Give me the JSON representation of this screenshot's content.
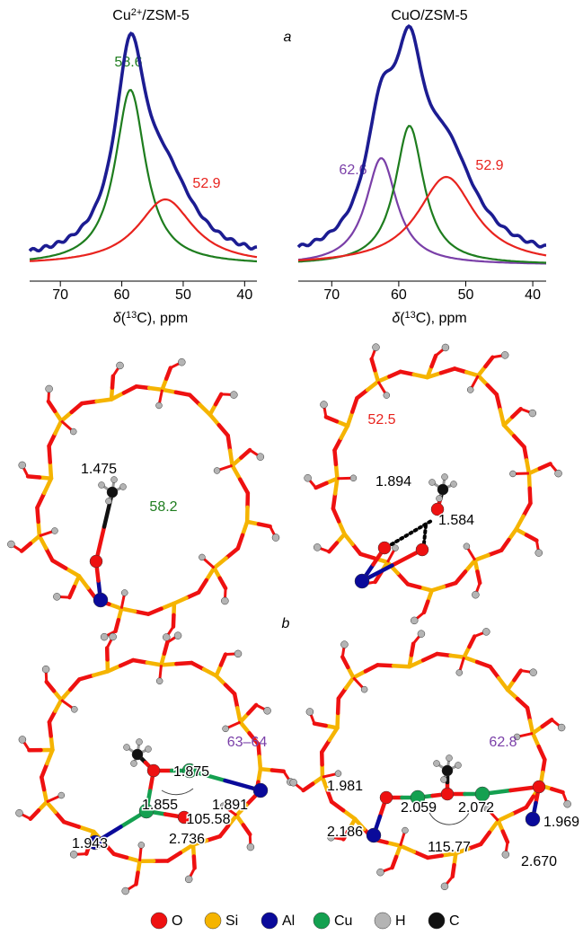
{
  "panel_a": "a",
  "panel_b": "b",
  "spectra": [
    {
      "title": [
        "Cu",
        "2+",
        "/ZSM-5"
      ],
      "xlabel": [
        "δ",
        "(",
        "13",
        "C), ppm"
      ],
      "xlim": [
        75,
        38
      ],
      "xticks": [
        70,
        60,
        50,
        40
      ],
      "sum_color": "#1c1c92",
      "peaks": [
        {
          "value": 58.6,
          "label": "58.6",
          "color": "#1e7d1e"
        },
        {
          "value": 52.9,
          "label": "52.9",
          "color": "#e8231e"
        }
      ]
    },
    {
      "title": [
        "CuO/ZSM-5"
      ],
      "xlabel": [
        "δ",
        "(",
        "13",
        "C), ppm"
      ],
      "xlim": [
        75,
        38
      ],
      "xticks": [
        70,
        60,
        50,
        40
      ],
      "sum_color": "#1c1c92",
      "peaks": [
        {
          "value": 62.6,
          "label": "62.6",
          "color": "#7a3fa8"
        },
        {
          "value": 58.4,
          "color": "#1e7d1e"
        },
        {
          "value": 52.9,
          "label": "52.9",
          "color": "#e8231e"
        }
      ]
    }
  ],
  "structures": [
    {
      "shift": "58.2",
      "shift_color": "#1e7d1e",
      "labels": [
        "1.475"
      ]
    },
    {
      "shift": "52.5",
      "shift_color": "#e8231e",
      "labels": [
        "1.894",
        "1.584"
      ]
    },
    {
      "shift": "63–64",
      "shift_color": "#7a3fa8",
      "labels": [
        "1.875",
        "1.855",
        "1.891",
        "105.58",
        "1.943",
        "2.736"
      ]
    },
    {
      "shift": "62.8",
      "shift_color": "#7a3fa8",
      "labels": [
        "1.981",
        "2.059",
        "2.072",
        "1.969",
        "2.186",
        "115.77",
        "2.670"
      ]
    }
  ],
  "legend": [
    {
      "symbol": "O",
      "color": "#ee1111"
    },
    {
      "symbol": "Si",
      "color": "#f5b400"
    },
    {
      "symbol": "Al",
      "color": "#0a0a9a"
    },
    {
      "symbol": "Cu",
      "color": "#14a050"
    },
    {
      "symbol": "H",
      "color": "#b4b4b4"
    },
    {
      "symbol": "C",
      "color": "#111111"
    }
  ]
}
